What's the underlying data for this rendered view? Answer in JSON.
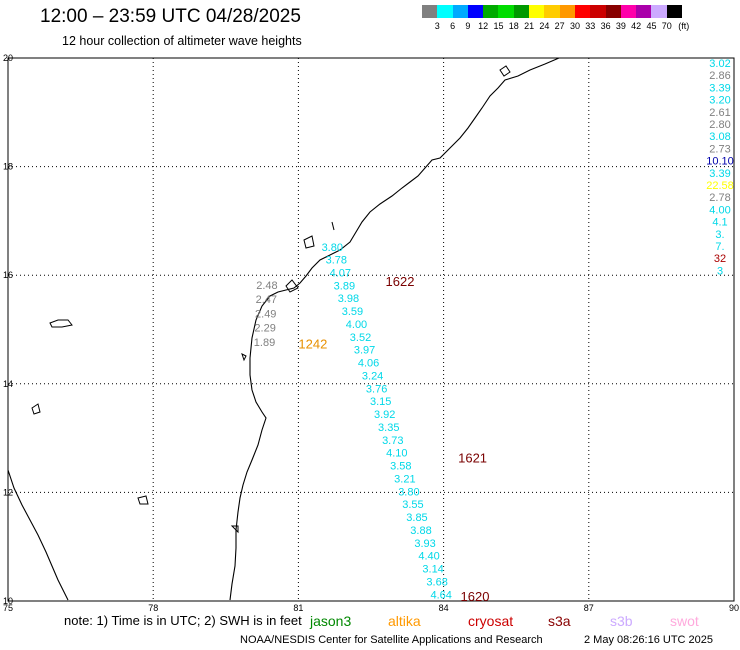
{
  "header": {
    "title": "12:00 – 23:59 UTC 04/28/2025",
    "subtitle": "12 hour collection of altimeter wave heights"
  },
  "color_scale": {
    "unit": "(ft)",
    "colors": [
      "#808080",
      "#00ffff",
      "#00aaff",
      "#0000ff",
      "#00aa00",
      "#00dd00",
      "#009900",
      "#ffff00",
      "#ffcc00",
      "#ff9900",
      "#ff0000",
      "#cc0000",
      "#880000",
      "#ff00aa",
      "#aa00aa",
      "#ccaaff",
      "#000000"
    ],
    "labels": [
      "3",
      "6",
      "9",
      "12",
      "15",
      "18",
      "21",
      "24",
      "27",
      "30",
      "33",
      "36",
      "39",
      "42",
      "45",
      "70"
    ]
  },
  "map": {
    "lon_range": [
      75,
      90
    ],
    "lat_range": [
      10,
      20
    ],
    "x_ticks": [
      "75",
      "78",
      "81",
      "84",
      "87",
      "90"
    ],
    "y_ticks": [
      "20",
      "18",
      "16",
      "14",
      "12",
      "10"
    ],
    "grid": true
  },
  "tracks": [
    {
      "name": "track-1620-1622",
      "color": "#00d8e8",
      "label": "1622",
      "label_color": "#7a0000",
      "label_pos": [
        82.8,
        15.8
      ],
      "values": [
        "3.80",
        "3.78",
        "4.07",
        "3.89",
        "3.98",
        "3.59",
        "4.00",
        "3.52",
        "3.97",
        "4.06",
        "3.24",
        "3.76",
        "3.15",
        "3.92",
        "3.35",
        "3.73",
        "4.10",
        "3.58",
        "3.21",
        "3.80",
        "3.55",
        "3.85",
        "3.88",
        "3.93",
        "4.40",
        "3.14",
        "3.68",
        "4.64"
      ],
      "lat_start": 16.45,
      "lat_end": 10.05,
      "lon_start": 81.7,
      "lon_end": 83.95
    },
    {
      "name": "track-1621",
      "color": "#7a0000",
      "label": "1621",
      "label_color": "#7a0000",
      "label_pos": [
        84.3,
        12.55
      ],
      "values": []
    },
    {
      "name": "track-1620",
      "color": "#7a0000",
      "label": "1620",
      "label_color": "#7a0000",
      "label_pos": [
        84.35,
        10.0
      ],
      "values": []
    },
    {
      "name": "track-1242",
      "color": "#808080",
      "label": "1242",
      "label_color": "#e89000",
      "label_pos": [
        81.0,
        14.65
      ],
      "values": [
        "2.48",
        "2.47",
        "2.49",
        "2.29",
        "1.89"
      ],
      "lat_start": 15.75,
      "lat_end": 14.7,
      "lon_start": 80.35,
      "lon_end": 80.3
    }
  ],
  "east_column": {
    "values": [
      "3.02",
      "2.86",
      "3.39",
      "3.20",
      "2.61",
      "2.80",
      "3.08",
      "2.73",
      "10.10",
      "3.39",
      "22.58",
      "2.78",
      "4.00",
      "4.1",
      "3.",
      "7.",
      "32",
      "3"
    ],
    "colors": [
      "#00d8e8",
      "#808080",
      "#00d8e8",
      "#00d8e8",
      "#808080",
      "#808080",
      "#00d8e8",
      "#808080",
      "#0000aa",
      "#00d8e8",
      "#ffff00",
      "#808080",
      "#00d8e8",
      "#00d8e8",
      "#00d8e8",
      "#00d8e8",
      "#aa0000",
      "#00d8e8"
    ]
  },
  "footer": {
    "note": "note:  1) Time is in UTC; 2) SWH is in feet",
    "satellites": [
      {
        "name": "jason3",
        "color": "#008800"
      },
      {
        "name": "altika",
        "color": "#ff9900"
      },
      {
        "name": "cryosat",
        "color": "#cc0000"
      },
      {
        "name": "s3a",
        "color": "#880000"
      },
      {
        "name": "s3b",
        "color": "#ccaaff"
      },
      {
        "name": "swot",
        "color": "#ffaadd"
      }
    ],
    "credit": "NOAA/NESDIS Center for Satellite Applications and Research",
    "timestamp": "2 May 08:26:16 UTC 2025"
  }
}
